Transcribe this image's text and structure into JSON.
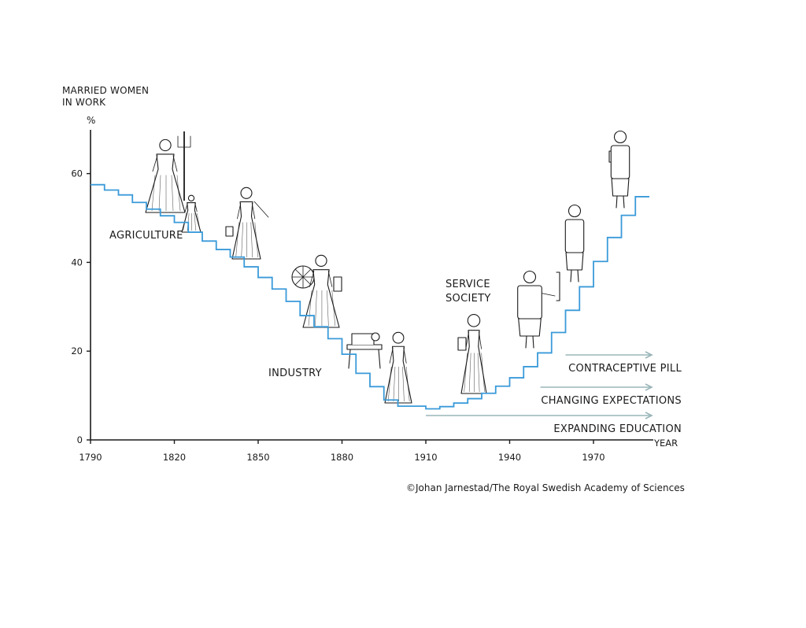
{
  "chart_data": {
    "type": "line",
    "style": "step",
    "ylabel_line1": "MARRIED WOMEN",
    "ylabel_line2": "IN WORK",
    "yunit": "%",
    "xlabel": "YEAR",
    "ylim": [
      0,
      68
    ],
    "xlim": [
      1790,
      1993
    ],
    "yticks": [
      0,
      20,
      40,
      60
    ],
    "xticks": [
      1790,
      1820,
      1850,
      1880,
      1910,
      1940,
      1970
    ],
    "line_color": "#3a9ad9",
    "x": [
      1790,
      1795,
      1800,
      1805,
      1810,
      1815,
      1820,
      1825,
      1830,
      1835,
      1840,
      1845,
      1850,
      1855,
      1860,
      1865,
      1870,
      1875,
      1880,
      1885,
      1890,
      1895,
      1900,
      1905,
      1910,
      1915,
      1920,
      1925,
      1930,
      1935,
      1940,
      1945,
      1950,
      1955,
      1960,
      1965,
      1970,
      1975,
      1980,
      1985
    ],
    "y": [
      57.5,
      56.3,
      55.2,
      53.5,
      52,
      50.5,
      49,
      46.8,
      44.8,
      42.9,
      41.2,
      39,
      36.6,
      34,
      31.2,
      28,
      25.5,
      22.8,
      19.3,
      15,
      12,
      9,
      7.6,
      7.6,
      7,
      7.5,
      8.3,
      9.3,
      10.5,
      12.1,
      14,
      16.5,
      19.6,
      24.2,
      29.2,
      34.5,
      40.2,
      45.6,
      50.6,
      54.8
    ],
    "step_end_x": 1990,
    "eras": [
      "AGRICULTURE",
      "INDUSTRY",
      "SERVICE",
      "SOCIETY"
    ],
    "drivers": [
      {
        "label": "CONTRACEPTIVE PILL",
        "from": 1960,
        "to": 1990,
        "arrow_color": "#9ab5b8"
      },
      {
        "label": "CHANGING EXPECTATIONS",
        "from": 1951,
        "to": 1990,
        "arrow_color": "#9ab5b8"
      },
      {
        "label": "EXPANDING EDUCATION",
        "from": 1910,
        "to": 1990,
        "arrow_color": "#9ab5b8"
      }
    ],
    "grid": false,
    "legend": "none"
  },
  "credit": "©Johan Jarnestad/The Royal Swedish Academy of Sciences",
  "illustrations": [
    {
      "icon": "woman-with-pitchfork-icon",
      "year": 1820
    },
    {
      "icon": "child-sitting-icon",
      "year": 1827
    },
    {
      "icon": "woman-sowing-icon",
      "year": 1842
    },
    {
      "icon": "woman-with-spinning-wheel-icon",
      "year": 1872
    },
    {
      "icon": "sewing-machine-icon",
      "year": 1886
    },
    {
      "icon": "maid-with-apron-icon",
      "year": 1903
    },
    {
      "icon": "woman-with-folder-icon",
      "year": 1928
    },
    {
      "icon": "woman-at-whiteboard-icon",
      "year": 1947
    },
    {
      "icon": "woman-in-suit-icon",
      "year": 1966
    },
    {
      "icon": "businesswoman-icon",
      "year": 1982
    }
  ]
}
